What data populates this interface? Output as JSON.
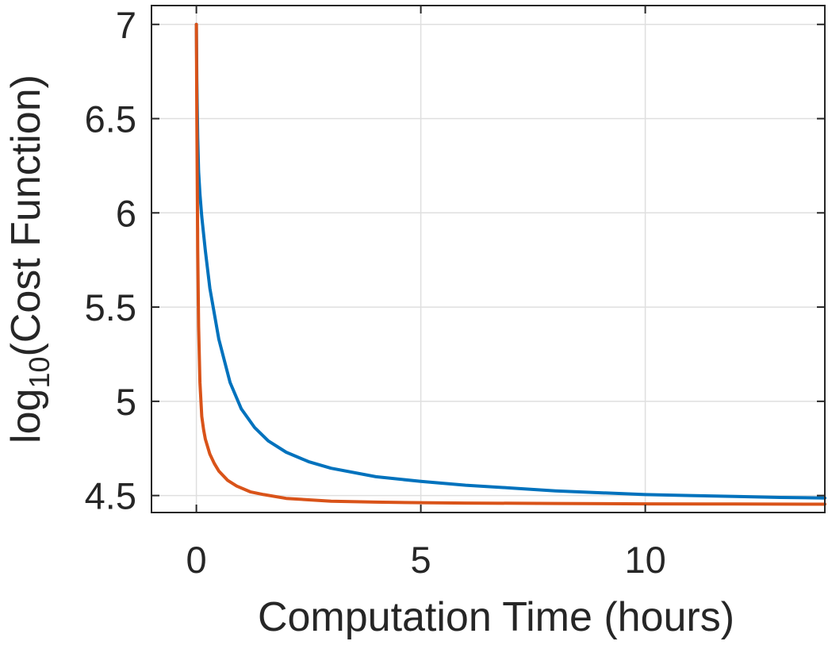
{
  "chart_data": {
    "type": "line",
    "title": "",
    "xlabel": "Computation Time (hours)",
    "ylabel_main": "log",
    "ylabel_sub": "10",
    "ylabel_tail": "(Cost Function)",
    "xlim": [
      -1,
      14
    ],
    "ylim": [
      4.41,
      7.1
    ],
    "xticks": [
      0,
      5,
      10
    ],
    "xtick_labels": [
      "0",
      "5",
      "10"
    ],
    "yticks": [
      4.5,
      5,
      5.5,
      6,
      6.5,
      7
    ],
    "ytick_labels": [
      "4.5",
      "5",
      "5.5",
      "6",
      "6.5",
      "7"
    ],
    "grid": true,
    "legend": "none",
    "series": [
      {
        "color": "#0072BD",
        "x": [
          0,
          0.01,
          0.03,
          0.05,
          0.08,
          0.12,
          0.2,
          0.3,
          0.5,
          0.75,
          1.0,
          1.3,
          1.6,
          2.0,
          2.5,
          3.0,
          4.0,
          5.0,
          6.0,
          7.0,
          8.0,
          9.0,
          10.0,
          11.0,
          12.0,
          13.0,
          14.0
        ],
        "y": [
          7.0,
          6.7,
          6.4,
          6.22,
          6.1,
          5.98,
          5.8,
          5.6,
          5.33,
          5.1,
          4.96,
          4.86,
          4.79,
          4.73,
          4.68,
          4.645,
          4.6,
          4.575,
          4.555,
          4.54,
          4.525,
          4.515,
          4.505,
          4.5,
          4.495,
          4.49,
          4.487
        ]
      },
      {
        "color": "#D95319",
        "x": [
          0,
          0.01,
          0.03,
          0.05,
          0.08,
          0.12,
          0.16,
          0.2,
          0.3,
          0.4,
          0.5,
          0.7,
          0.9,
          1.2,
          1.5,
          2.0,
          3.0,
          4.0,
          5.0,
          6.0,
          8.0,
          10.0,
          12.0,
          14.0
        ],
        "y": [
          7.0,
          6.5,
          5.8,
          5.4,
          5.1,
          4.92,
          4.85,
          4.8,
          4.72,
          4.67,
          4.63,
          4.58,
          4.55,
          4.52,
          4.505,
          4.485,
          4.47,
          4.465,
          4.462,
          4.46,
          4.458,
          4.456,
          4.455,
          4.454
        ]
      }
    ]
  }
}
